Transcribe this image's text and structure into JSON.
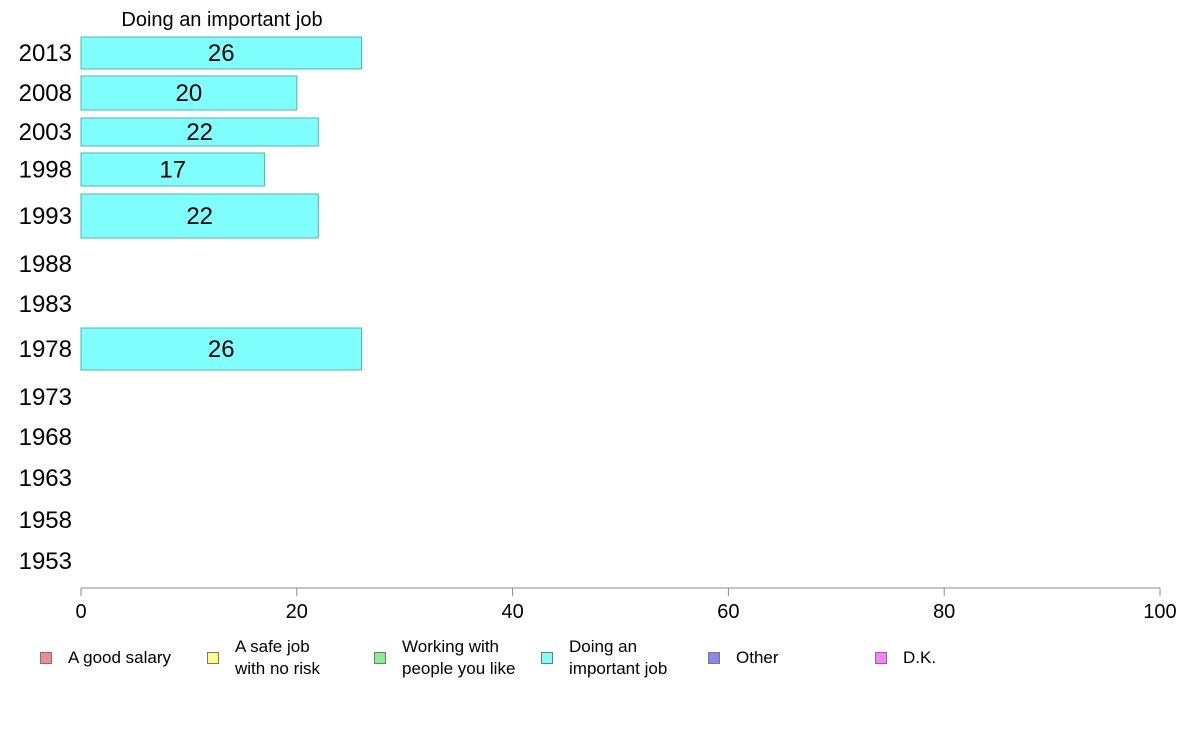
{
  "chart_data": {
    "type": "bar",
    "orientation": "horizontal",
    "title": "Doing an important job",
    "categories": [
      "2013",
      "2008",
      "2003",
      "1998",
      "1993",
      "1988",
      "1983",
      "1978",
      "1973",
      "1968",
      "1963",
      "1958",
      "1953"
    ],
    "values": [
      26,
      20,
      22,
      17,
      22,
      null,
      null,
      26,
      null,
      null,
      null,
      null,
      null
    ],
    "data_labels": [
      "26",
      "20",
      "22",
      "17",
      "22",
      "",
      "",
      "26",
      "",
      "",
      "",
      "",
      ""
    ],
    "xlim": [
      0,
      100
    ],
    "xticks": [
      "0",
      "20",
      "40",
      "60",
      "80",
      "100"
    ],
    "bar_color": "#80ffff",
    "bar_border": "#4fb3b3",
    "grid": false,
    "legend": {
      "placement": "bottom",
      "entries": [
        {
          "label": "A good salary",
          "color": "#f58a8a"
        },
        {
          "label": "A safe job\nwith no risk",
          "color": "#ffff88"
        },
        {
          "label": "Working with\npeople you like",
          "color": "#88f088"
        },
        {
          "label": "Doing an\nimportant job",
          "color": "#80ffff"
        },
        {
          "label": "Other",
          "color": "#8888f0"
        },
        {
          "label": "D.K.",
          "color": "#ff80ff"
        }
      ]
    }
  }
}
